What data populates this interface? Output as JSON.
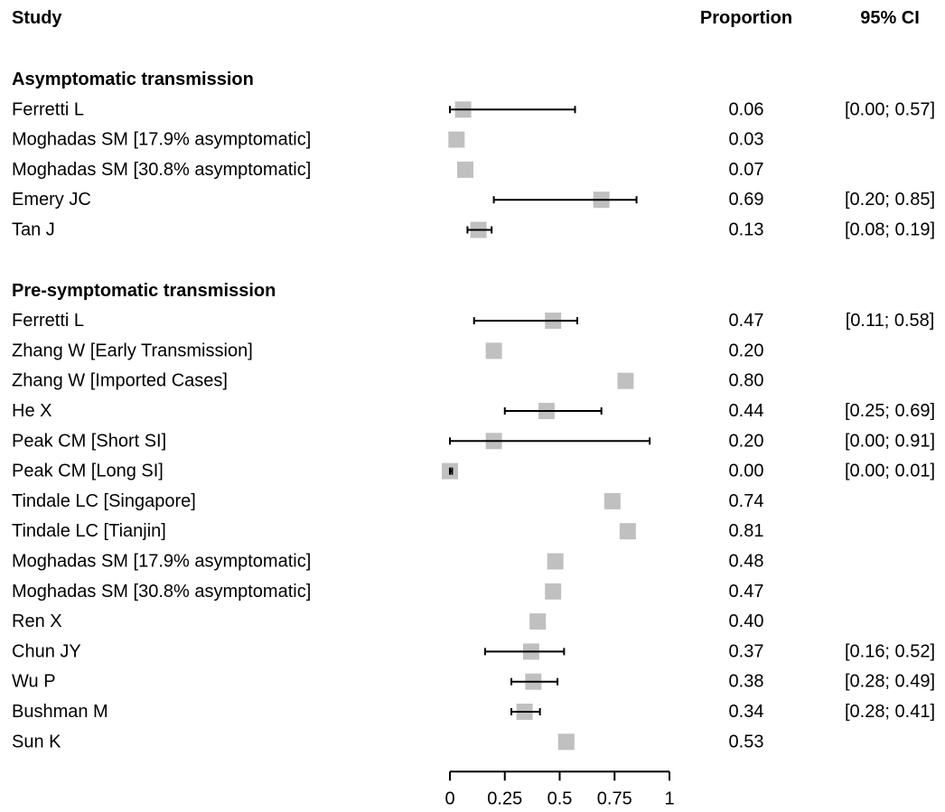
{
  "chart_data": {
    "type": "forest",
    "columns": {
      "study": "Study",
      "proportion": "Proportion",
      "ci": "95% CI"
    },
    "xlim": [
      0,
      1
    ],
    "x_ticks": [
      0,
      0.25,
      0.5,
      0.75,
      1
    ],
    "x_tick_labels": [
      "0",
      "0.25",
      "0.5",
      "0.75",
      "1"
    ],
    "marker_color": "#c0c0c0",
    "groups": [
      {
        "label": "Asymptomatic transmission",
        "studies": [
          {
            "name": "Ferretti L",
            "est": 0.06,
            "est_label": "0.06",
            "lower": 0.0,
            "upper": 0.57,
            "ci_label": "[0.00; 0.57]"
          },
          {
            "name": "Moghadas SM [17.9% asymptomatic]",
            "est": 0.03,
            "est_label": "0.03",
            "lower": null,
            "upper": null,
            "ci_label": ""
          },
          {
            "name": "Moghadas SM [30.8% asymptomatic]",
            "est": 0.07,
            "est_label": "0.07",
            "lower": null,
            "upper": null,
            "ci_label": ""
          },
          {
            "name": "Emery JC",
            "est": 0.69,
            "est_label": "0.69",
            "lower": 0.2,
            "upper": 0.85,
            "ci_label": "[0.20; 0.85]"
          },
          {
            "name": "Tan J",
            "est": 0.13,
            "est_label": "0.13",
            "lower": 0.08,
            "upper": 0.19,
            "ci_label": "[0.08; 0.19]"
          }
        ]
      },
      {
        "label": "Pre-symptomatic transmission",
        "studies": [
          {
            "name": "Ferretti L",
            "est": 0.47,
            "est_label": "0.47",
            "lower": 0.11,
            "upper": 0.58,
            "ci_label": "[0.11; 0.58]"
          },
          {
            "name": "Zhang W [Early Transmission]",
            "est": 0.2,
            "est_label": "0.20",
            "lower": null,
            "upper": null,
            "ci_label": ""
          },
          {
            "name": "Zhang W [Imported Cases]",
            "est": 0.8,
            "est_label": "0.80",
            "lower": null,
            "upper": null,
            "ci_label": ""
          },
          {
            "name": "He X",
            "est": 0.44,
            "est_label": "0.44",
            "lower": 0.25,
            "upper": 0.69,
            "ci_label": "[0.25; 0.69]"
          },
          {
            "name": "Peak CM [Short SI]",
            "est": 0.2,
            "est_label": "0.20",
            "lower": 0.0,
            "upper": 0.91,
            "ci_label": "[0.00; 0.91]"
          },
          {
            "name": "Peak CM [Long SI]",
            "est": 0.0,
            "est_label": "0.00",
            "lower": 0.0,
            "upper": 0.01,
            "ci_label": "[0.00; 0.01]"
          },
          {
            "name": "Tindale LC [Singapore]",
            "est": 0.74,
            "est_label": "0.74",
            "lower": null,
            "upper": null,
            "ci_label": ""
          },
          {
            "name": "Tindale LC [Tianjin]",
            "est": 0.81,
            "est_label": "0.81",
            "lower": null,
            "upper": null,
            "ci_label": ""
          },
          {
            "name": "Moghadas SM [17.9% asymptomatic]",
            "est": 0.48,
            "est_label": "0.48",
            "lower": null,
            "upper": null,
            "ci_label": ""
          },
          {
            "name": "Moghadas SM [30.8% asymptomatic]",
            "est": 0.47,
            "est_label": "0.47",
            "lower": null,
            "upper": null,
            "ci_label": ""
          },
          {
            "name": "Ren X",
            "est": 0.4,
            "est_label": "0.40",
            "lower": null,
            "upper": null,
            "ci_label": ""
          },
          {
            "name": "Chun JY",
            "est": 0.37,
            "est_label": "0.37",
            "lower": 0.16,
            "upper": 0.52,
            "ci_label": "[0.16; 0.52]"
          },
          {
            "name": "Wu P",
            "est": 0.38,
            "est_label": "0.38",
            "lower": 0.28,
            "upper": 0.49,
            "ci_label": "[0.28; 0.49]"
          },
          {
            "name": "Bushman M",
            "est": 0.34,
            "est_label": "0.34",
            "lower": 0.28,
            "upper": 0.41,
            "ci_label": "[0.28; 0.41]"
          },
          {
            "name": "Sun K",
            "est": 0.53,
            "est_label": "0.53",
            "lower": null,
            "upper": null,
            "ci_label": ""
          }
        ]
      }
    ]
  }
}
